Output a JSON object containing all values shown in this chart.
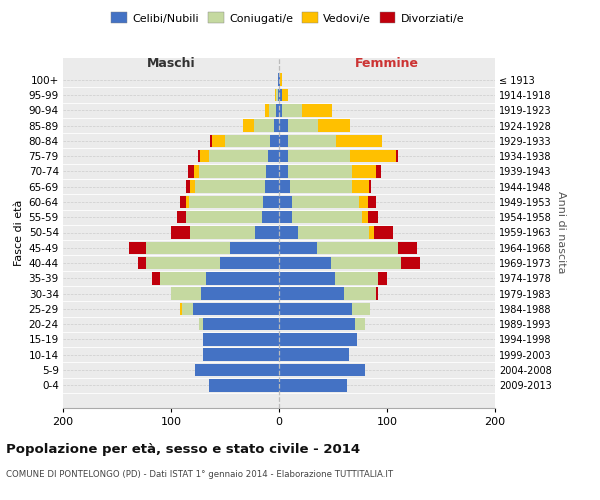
{
  "age_groups": [
    "0-4",
    "5-9",
    "10-14",
    "15-19",
    "20-24",
    "25-29",
    "30-34",
    "35-39",
    "40-44",
    "45-49",
    "50-54",
    "55-59",
    "60-64",
    "65-69",
    "70-74",
    "75-79",
    "80-84",
    "85-89",
    "90-94",
    "95-99",
    "100+"
  ],
  "birth_years": [
    "2009-2013",
    "2004-2008",
    "1999-2003",
    "1994-1998",
    "1989-1993",
    "1984-1988",
    "1979-1983",
    "1974-1978",
    "1969-1973",
    "1964-1968",
    "1959-1963",
    "1954-1958",
    "1949-1953",
    "1944-1948",
    "1939-1943",
    "1934-1938",
    "1929-1933",
    "1924-1928",
    "1919-1923",
    "1914-1918",
    "≤ 1913"
  ],
  "male_celibe": [
    65,
    78,
    70,
    70,
    70,
    80,
    72,
    68,
    55,
    45,
    22,
    16,
    15,
    13,
    12,
    10,
    8,
    5,
    3,
    1,
    1
  ],
  "male_coniug": [
    0,
    0,
    0,
    0,
    4,
    10,
    28,
    42,
    68,
    78,
    60,
    70,
    68,
    65,
    62,
    55,
    42,
    18,
    6,
    2,
    0
  ],
  "male_vedov": [
    0,
    0,
    0,
    0,
    0,
    2,
    0,
    0,
    0,
    0,
    0,
    0,
    3,
    4,
    5,
    8,
    12,
    10,
    4,
    1,
    0
  ],
  "male_divor": [
    0,
    0,
    0,
    0,
    0,
    0,
    0,
    8,
    8,
    16,
    18,
    8,
    6,
    4,
    5,
    2,
    2,
    0,
    0,
    0,
    0
  ],
  "female_celibe": [
    63,
    80,
    65,
    72,
    70,
    68,
    60,
    52,
    48,
    35,
    18,
    12,
    12,
    10,
    8,
    8,
    8,
    8,
    3,
    3,
    1
  ],
  "female_coniug": [
    0,
    0,
    0,
    0,
    10,
    16,
    30,
    40,
    65,
    75,
    65,
    65,
    62,
    58,
    60,
    58,
    45,
    28,
    18,
    0,
    0
  ],
  "female_vedov": [
    0,
    0,
    0,
    0,
    0,
    0,
    0,
    0,
    0,
    0,
    5,
    5,
    8,
    15,
    22,
    42,
    42,
    30,
    28,
    5,
    2
  ],
  "female_divor": [
    0,
    0,
    0,
    0,
    0,
    0,
    2,
    8,
    18,
    18,
    18,
    10,
    8,
    2,
    4,
    2,
    0,
    0,
    0,
    0,
    0
  ],
  "color_celibe": "#4472c4",
  "color_coniug": "#c5d9a0",
  "color_vedov": "#ffc000",
  "color_divor": "#c0000c",
  "title": "Popolazione per età, sesso e stato civile - 2014",
  "subtitle": "COMUNE DI PONTELONGO (PD) - Dati ISTAT 1° gennaio 2014 - Elaborazione TUTTITALIA.IT",
  "label_maschi": "Maschi",
  "label_femmine": "Femmine",
  "ylabel_left": "Fasce di età",
  "ylabel_right": "Anni di nascita",
  "xlim": 200,
  "bg_color": "#ebebeb",
  "legend_labels": [
    "Celibi/Nubili",
    "Coniugati/e",
    "Vedovi/e",
    "Divorziati/e"
  ]
}
